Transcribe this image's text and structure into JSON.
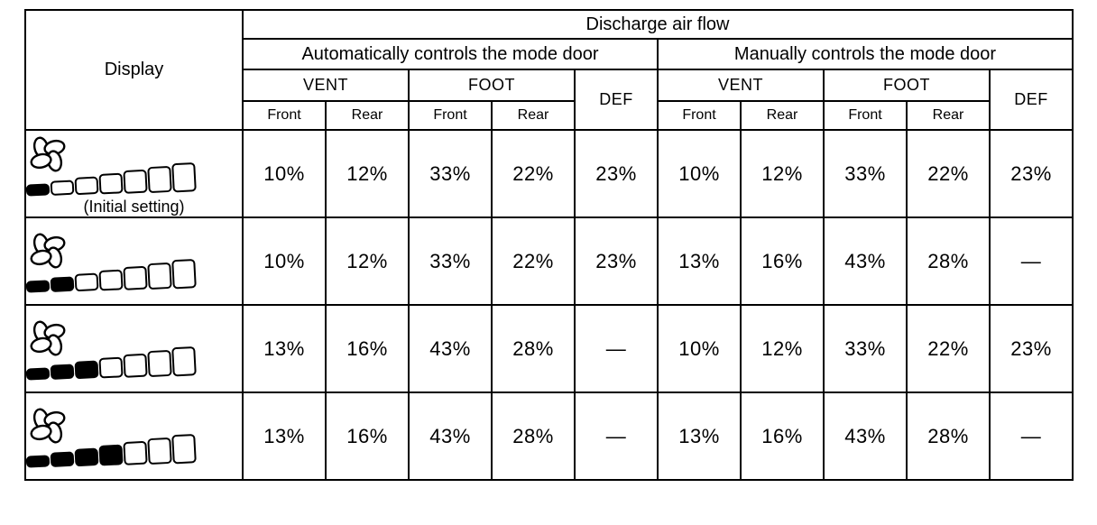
{
  "table": {
    "header": {
      "display": "Display",
      "discharge": "Discharge air flow",
      "auto": "Automatically controls the mode door",
      "manual": "Manually controls the mode door",
      "vent": "VENT",
      "foot": "FOOT",
      "def": "DEF",
      "front": "Front",
      "rear": "Rear"
    },
    "gauge": {
      "segments_total": 7,
      "fan_icon": "fan-icon",
      "filled_color": "#000000",
      "empty_color": "#ffffff"
    },
    "rows": [
      {
        "fan_level": 1,
        "note": "(Initial setting)",
        "auto": [
          "10%",
          "12%",
          "33%",
          "22%",
          "23%"
        ],
        "manual": [
          "10%",
          "12%",
          "33%",
          "22%",
          "23%"
        ]
      },
      {
        "fan_level": 2,
        "note": "",
        "auto": [
          "10%",
          "12%",
          "33%",
          "22%",
          "23%"
        ],
        "manual": [
          "13%",
          "16%",
          "43%",
          "28%",
          "—"
        ]
      },
      {
        "fan_level": 3,
        "note": "",
        "auto": [
          "13%",
          "16%",
          "43%",
          "28%",
          "—"
        ],
        "manual": [
          "10%",
          "12%",
          "33%",
          "22%",
          "23%"
        ]
      },
      {
        "fan_level": 4,
        "note": "",
        "auto": [
          "13%",
          "16%",
          "43%",
          "28%",
          "—"
        ],
        "manual": [
          "13%",
          "16%",
          "43%",
          "28%",
          "—"
        ]
      }
    ]
  },
  "colors": {
    "border": "#000000",
    "background": "#ffffff",
    "text": "#000000",
    "filled_segment": "#000000"
  },
  "chart_data": {
    "type": "table",
    "title": "Discharge air flow",
    "column_groups": [
      "Automatically controls the mode door",
      "Manually controls the mode door"
    ],
    "columns": [
      "Display",
      "Auto VENT Front",
      "Auto VENT Rear",
      "Auto FOOT Front",
      "Auto FOOT Rear",
      "Auto DEF",
      "Manual VENT Front",
      "Manual VENT Rear",
      "Manual FOOT Front",
      "Manual FOOT Rear",
      "Manual DEF"
    ],
    "rows": [
      [
        "Fan level 1 of 7 (Initial setting)",
        "10%",
        "12%",
        "33%",
        "22%",
        "23%",
        "10%",
        "12%",
        "33%",
        "22%",
        "23%"
      ],
      [
        "Fan level 2 of 7",
        "10%",
        "12%",
        "33%",
        "22%",
        "23%",
        "13%",
        "16%",
        "43%",
        "28%",
        "—"
      ],
      [
        "Fan level 3 of 7",
        "13%",
        "16%",
        "43%",
        "28%",
        "—",
        "10%",
        "12%",
        "33%",
        "22%",
        "23%"
      ],
      [
        "Fan level 4 of 7",
        "13%",
        "16%",
        "43%",
        "28%",
        "—",
        "13%",
        "16%",
        "43%",
        "28%",
        "—"
      ]
    ]
  }
}
